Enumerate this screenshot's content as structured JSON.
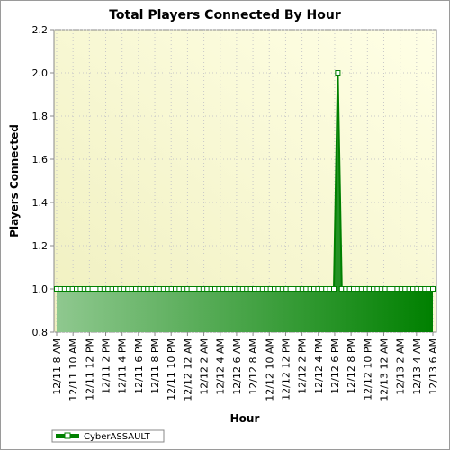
{
  "chart_data": {
    "type": "area",
    "title": "Total Players Connected By Hour",
    "xlabel": "Hour",
    "ylabel": "Players Connected",
    "ylim": [
      0.8,
      2.2
    ],
    "y_ticks": [
      0.8,
      1.0,
      1.2,
      1.4,
      1.6,
      1.8,
      2.0,
      2.2
    ],
    "x_tick_labels": [
      "12/11 8 AM",
      "12/11 10 AM",
      "12/11 12 PM",
      "12/11 2 PM",
      "12/11 4 PM",
      "12/11 6 PM",
      "12/11 8 PM",
      "12/11 10 PM",
      "12/12 12 AM",
      "12/12 2 AM",
      "12/12 4 AM",
      "12/12 6 AM",
      "12/12 8 AM",
      "12/12 10 AM",
      "12/12 12 PM",
      "12/12 2 PM",
      "12/12 4 PM",
      "12/12 6 PM",
      "12/12 8 PM",
      "12/12 10 PM",
      "12/13 12 AM",
      "12/13 2 AM",
      "12/13 4 AM",
      "12/13 6 AM"
    ],
    "grid": true,
    "legend_position": "bottom-left",
    "series": [
      {
        "name": "CyberASSAULT",
        "color": "#008000",
        "values": [
          1,
          1,
          1,
          1,
          1,
          1,
          1,
          1,
          1,
          1,
          1,
          1,
          1,
          1,
          1,
          1,
          1,
          1,
          1,
          1,
          1,
          1,
          1,
          1,
          1,
          1,
          1,
          1,
          1,
          1,
          1,
          1,
          1,
          1,
          1,
          1,
          1,
          1,
          1,
          1,
          1,
          1,
          1,
          1,
          1,
          1,
          1,
          1,
          1,
          1,
          1,
          1,
          1,
          1,
          1,
          1,
          1,
          1,
          1,
          1,
          1,
          1,
          1,
          1,
          1,
          1,
          1,
          1,
          1,
          1,
          1,
          2,
          1,
          1,
          1,
          1,
          1,
          1,
          1,
          1,
          1,
          1,
          1,
          1,
          1,
          1,
          1,
          1,
          1,
          1,
          1,
          1,
          1,
          1,
          1,
          1
        ]
      }
    ]
  }
}
